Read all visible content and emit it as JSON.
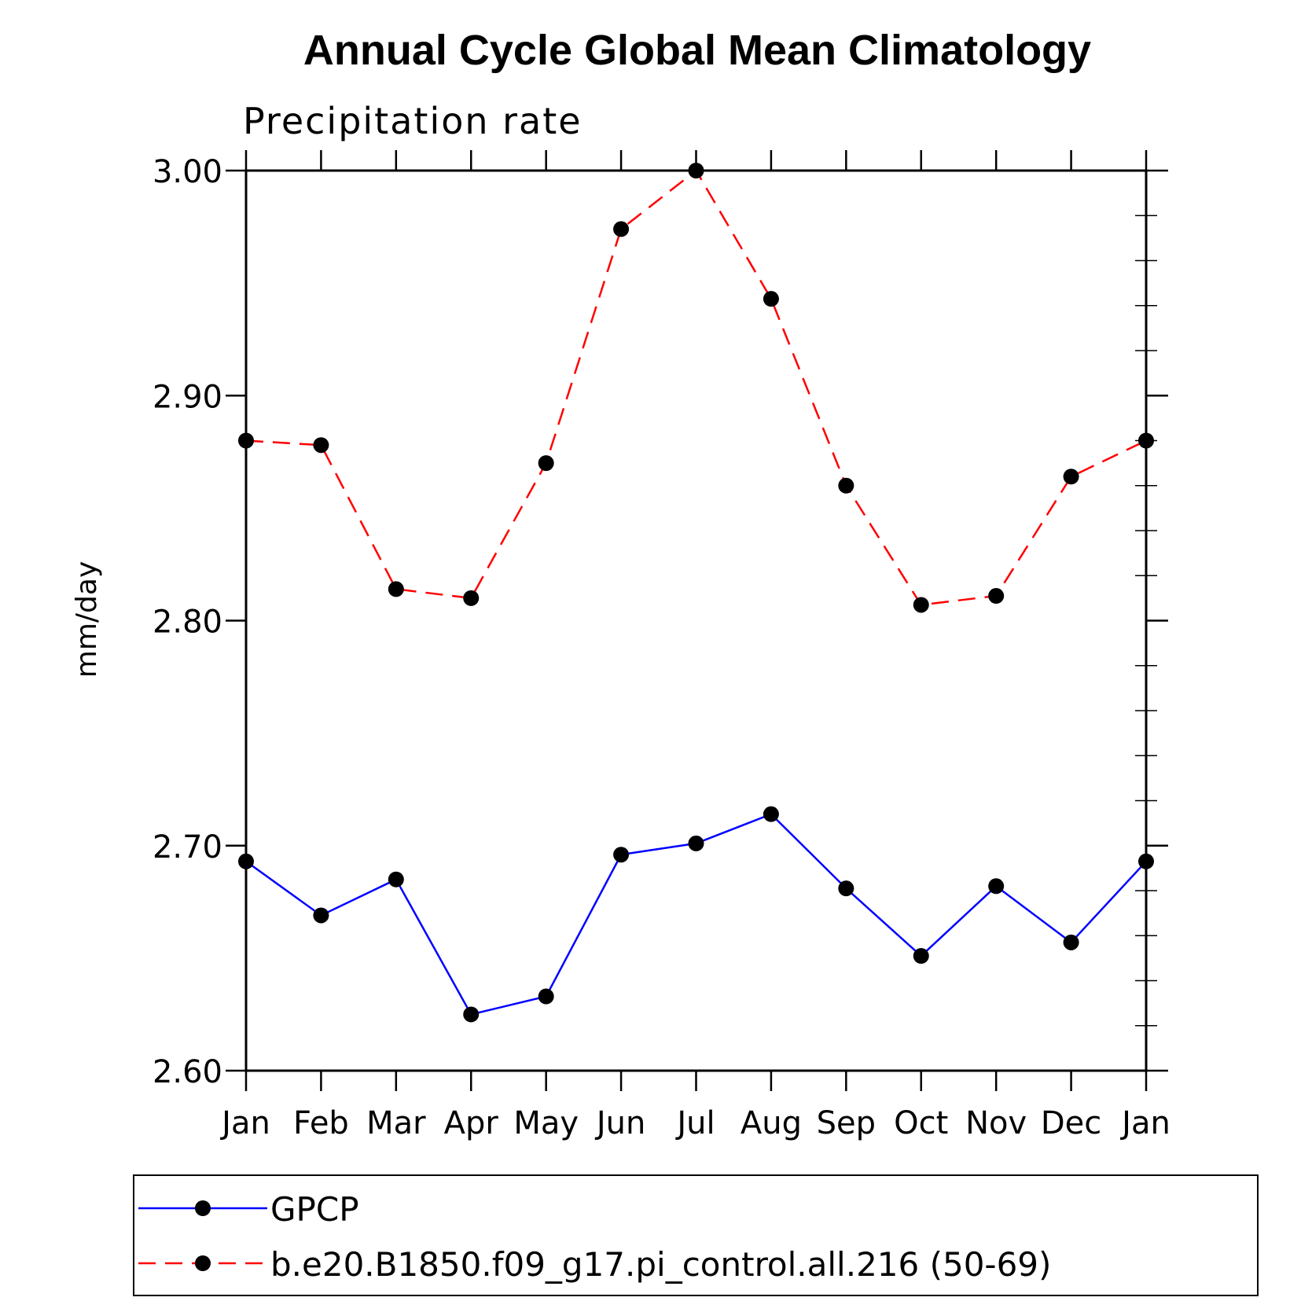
{
  "chart_data": {
    "type": "line",
    "title": "Annual Cycle Global Mean Climatology",
    "subtitle": "Precipitation rate",
    "xlabel": "",
    "ylabel": "mm/day",
    "categories": [
      "Jan",
      "Feb",
      "Mar",
      "Apr",
      "May",
      "Jun",
      "Jul",
      "Aug",
      "Sep",
      "Oct",
      "Nov",
      "Dec",
      "Jan"
    ],
    "ylim": [
      2.6,
      3.0
    ],
    "yticks": [
      "2.60",
      "2.70",
      "2.80",
      "2.90",
      "3.00"
    ],
    "ytick_values": [
      2.6,
      2.7,
      2.8,
      2.9,
      3.0
    ],
    "series": [
      {
        "name": "GPCP",
        "color": "#0000ff",
        "style": "solid",
        "marker": "filled-circle",
        "values": [
          2.693,
          2.669,
          2.685,
          2.625,
          2.633,
          2.696,
          2.701,
          2.714,
          2.681,
          2.651,
          2.682,
          2.657,
          2.693
        ]
      },
      {
        "name": "b.e20.B1850.f09_g17.pi_control.all.216 (50-69)",
        "color": "#ff0000",
        "style": "dashed",
        "marker": "filled-circle",
        "values": [
          2.88,
          2.878,
          2.814,
          2.81,
          2.87,
          2.974,
          3.0,
          2.943,
          2.86,
          2.807,
          2.811,
          2.864,
          2.88
        ]
      }
    ],
    "legend_position": "bottom",
    "grid": false
  }
}
